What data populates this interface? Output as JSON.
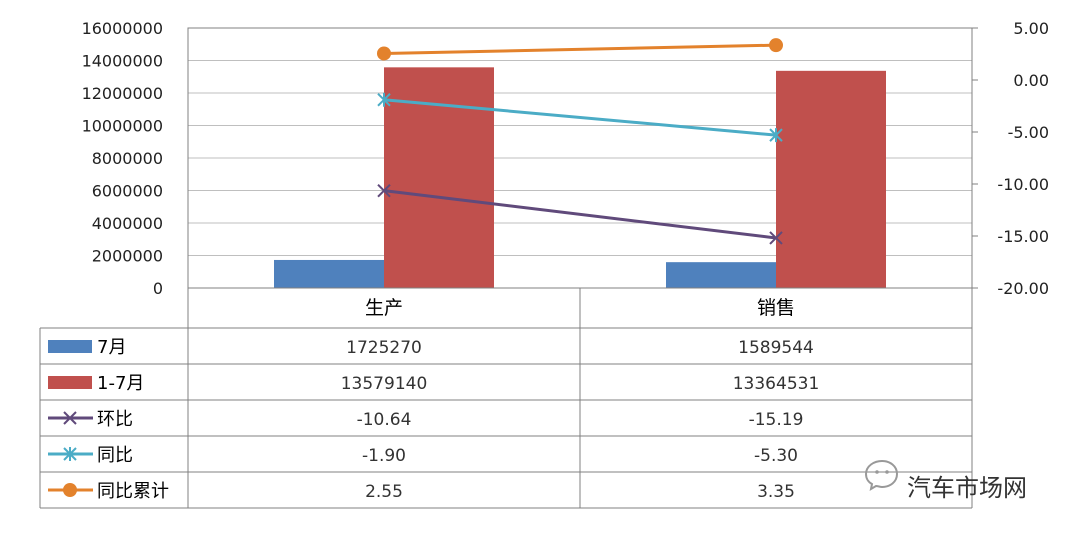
{
  "chart_data": {
    "type": "bar",
    "categories": [
      "生产",
      "销售"
    ],
    "y_left": {
      "ylim": [
        0,
        16000000
      ],
      "ticks": [
        "16000000",
        "14000000",
        "12000000",
        "10000000",
        "8000000",
        "6000000",
        "4000000",
        "2000000",
        "0"
      ]
    },
    "y_right": {
      "ylim": [
        -20,
        5
      ],
      "ticks": [
        "5.00",
        "0.00",
        "-5.00",
        "-10.00",
        "-15.00",
        "-20.00"
      ]
    },
    "grid": true,
    "legend": "data-table-below",
    "series": [
      {
        "name": "7月",
        "kind": "bar",
        "axis": "left",
        "color": "#4F81BD",
        "values": [
          1725270,
          1589544
        ],
        "labels": [
          "1725270",
          "1589544"
        ]
      },
      {
        "name": "1-7月",
        "kind": "bar",
        "axis": "left",
        "color": "#C0504D",
        "values": [
          13579140,
          13364531
        ],
        "labels": [
          "13579140",
          "13364531"
        ]
      },
      {
        "name": "环比",
        "kind": "line",
        "marker": "x",
        "axis": "right",
        "color": "#604A7B",
        "values": [
          -10.64,
          -15.19
        ],
        "labels": [
          "-10.64",
          "-15.19"
        ]
      },
      {
        "name": "同比",
        "kind": "line",
        "marker": "star",
        "axis": "right",
        "color": "#4BACC6",
        "values": [
          -1.9,
          -5.3
        ],
        "labels": [
          "-1.90",
          "-5.30"
        ]
      },
      {
        "name": "同比累计",
        "kind": "line",
        "marker": "circle",
        "axis": "right",
        "color": "#E3822C",
        "values": [
          2.55,
          3.35
        ],
        "labels": [
          "2.55",
          "3.35"
        ]
      }
    ]
  },
  "watermark": {
    "text": "汽车市场网"
  }
}
